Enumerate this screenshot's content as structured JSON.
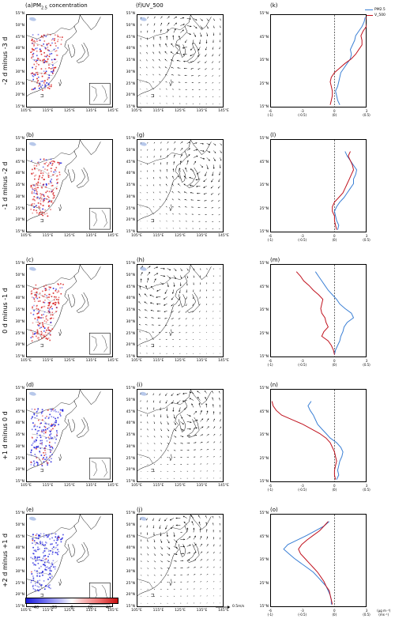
{
  "titles": {
    "col_a": "(a)PM2.5 concentration",
    "col_f": "(f)UV_500",
    "col_k": "(k)"
  },
  "panel_letters": {
    "row1": [
      "(a)PM2.5 concentration",
      "(f)UV_500",
      "(k)"
    ],
    "row2": [
      "(b)",
      "(g)",
      "(l)"
    ],
    "row3": [
      "(c)",
      "(h)",
      "(m)"
    ],
    "row4": [
      "(d)",
      "(i)",
      "(n)"
    ],
    "row5": [
      "(e)",
      "(j)",
      "(o)"
    ]
  },
  "row_labels": [
    "-2 d minus -3 d",
    "-1 d minus -2 d",
    "0 d minus -1 d",
    "+1 d minus 0 d",
    "+2 d minus +1 d"
  ],
  "lat_ticks": [
    "55°N",
    "45°N",
    "35°N",
    "25°N",
    "15°N"
  ],
  "lat_ticks_mid": [
    "50°N",
    "40°N",
    "30°N",
    "20°N"
  ],
  "lon_ticks": [
    "105°E",
    "115°E",
    "125°E",
    "135°E",
    "145°E"
  ],
  "profile_x_ticks": [
    {
      "top": "-6",
      "bottom": "(-1)"
    },
    {
      "top": "-3",
      "bottom": "(-0.5)"
    },
    {
      "top": "0",
      "bottom": "(0)"
    },
    {
      "top": "3",
      "bottom": "(0.5)"
    }
  ],
  "profile_units": "(μg m⁻³)",
  "profile_units2": "(ms⁻¹)",
  "legend": {
    "pm": "PM2.5",
    "v": "V_500"
  },
  "colorbar": {
    "ticks": [
      "-40",
      "-20",
      "0",
      "20",
      "40"
    ]
  },
  "reference_vector": "0.5m/s",
  "colors": {
    "pm_line": "#3a7fd5",
    "v_line": "#c0121e",
    "neg": "#1a1adb",
    "pos": "#d61a1a"
  },
  "chart_data": [
    {
      "type": "line",
      "panel": "(k)",
      "y_lat": [
        16,
        18,
        20,
        22,
        24,
        26,
        28,
        30,
        32,
        34,
        36,
        38,
        40,
        42,
        44,
        46,
        48,
        50,
        52,
        54
      ],
      "series": [
        {
          "name": "PM2.5",
          "values": [
            0.5,
            0.3,
            0.2,
            0.1,
            0.3,
            0.4,
            0.5,
            0.6,
            0.9,
            1.2,
            1.5,
            1.6,
            1.5,
            1.7,
            1.9,
            2.0,
            2.3,
            2.6,
            2.8,
            2.9
          ]
        },
        {
          "name": "V_500",
          "values": [
            -0.4,
            -0.3,
            -0.2,
            -0.2,
            -0.3,
            -0.4,
            -0.3,
            0.0,
            0.5,
            1.0,
            1.6,
            2.0,
            2.3,
            2.6,
            2.6,
            2.5,
            2.7,
            3.0,
            3.1,
            3.0
          ]
        }
      ]
    },
    {
      "type": "line",
      "panel": "(l)",
      "y_lat": [
        16,
        18,
        20,
        22,
        24,
        26,
        28,
        30,
        32,
        34,
        36,
        38,
        40,
        42,
        44,
        46,
        48,
        50
      ],
      "series": [
        {
          "name": "PM2.5",
          "values": [
            0.3,
            0.4,
            0.2,
            0.1,
            0.0,
            0.2,
            0.5,
            0.9,
            1.2,
            1.5,
            1.8,
            1.8,
            2.0,
            2.1,
            1.8,
            1.5,
            1.2,
            1.0
          ]
        },
        {
          "name": "V_500",
          "values": [
            0.2,
            0.1,
            0.0,
            0.0,
            -0.2,
            -0.2,
            0.0,
            0.4,
            0.8,
            1.0,
            1.2,
            1.4,
            1.6,
            1.8,
            1.7,
            1.5,
            1.3,
            1.5
          ]
        }
      ]
    },
    {
      "type": "line",
      "panel": "(m)",
      "y_lat": [
        16,
        18,
        20,
        22,
        24,
        26,
        28,
        30,
        32,
        34,
        36,
        38,
        40,
        42,
        44,
        46,
        48,
        50,
        52
      ],
      "series": [
        {
          "name": "PM2.5",
          "values": [
            0.0,
            0.1,
            0.3,
            0.5,
            0.6,
            0.8,
            0.9,
            1.2,
            1.8,
            1.6,
            1.0,
            0.5,
            0.2,
            -0.2,
            -0.6,
            -0.9,
            -1.2,
            -1.5,
            -1.8
          ]
        },
        {
          "name": "V_500",
          "values": [
            0.0,
            -0.1,
            -0.3,
            -0.6,
            -1.2,
            -1.0,
            -0.6,
            -0.8,
            -0.9,
            -1.2,
            -1.3,
            -1.2,
            -1.1,
            -1.5,
            -2.0,
            -2.4,
            -2.9,
            -3.2,
            -3.6
          ]
        }
      ]
    },
    {
      "type": "line",
      "panel": "(n)",
      "y_lat": [
        16,
        18,
        20,
        22,
        24,
        26,
        28,
        30,
        32,
        34,
        36,
        38,
        40,
        42,
        44,
        46,
        48,
        50
      ],
      "series": [
        {
          "name": "PM2.5",
          "values": [
            0.2,
            0.4,
            0.3,
            0.4,
            0.5,
            0.7,
            0.8,
            0.6,
            0.2,
            -0.4,
            -0.8,
            -1.2,
            -1.6,
            -1.8,
            -2.0,
            -2.3,
            -2.5,
            -2.2
          ]
        },
        {
          "name": "V_500",
          "values": [
            0.1,
            0.0,
            0.0,
            0.1,
            0.2,
            0.1,
            0.0,
            -0.2,
            -0.4,
            -0.8,
            -1.4,
            -2.2,
            -3.0,
            -4.0,
            -5.0,
            -5.5,
            -5.8,
            -5.9
          ]
        }
      ]
    },
    {
      "type": "line",
      "panel": "(o)",
      "y_lat": [
        16,
        18,
        20,
        22,
        24,
        26,
        28,
        30,
        32,
        34,
        36,
        38,
        40,
        42,
        44,
        46,
        48,
        50,
        52
      ],
      "series": [
        {
          "name": "PM2.5",
          "values": [
            -0.3,
            -0.3,
            -0.4,
            -0.6,
            -0.8,
            -1.2,
            -1.6,
            -2.0,
            -2.6,
            -3.2,
            -3.8,
            -4.3,
            -4.8,
            -4.4,
            -3.5,
            -2.6,
            -1.8,
            -1.0,
            -0.5
          ]
        },
        {
          "name": "V_500",
          "values": [
            -0.2,
            -0.3,
            -0.4,
            -0.5,
            -0.8,
            -1.0,
            -1.3,
            -1.6,
            -2.0,
            -2.4,
            -2.8,
            -3.2,
            -3.4,
            -3.1,
            -2.6,
            -2.0,
            -1.4,
            -1.0,
            -0.6
          ]
        }
      ]
    }
  ]
}
